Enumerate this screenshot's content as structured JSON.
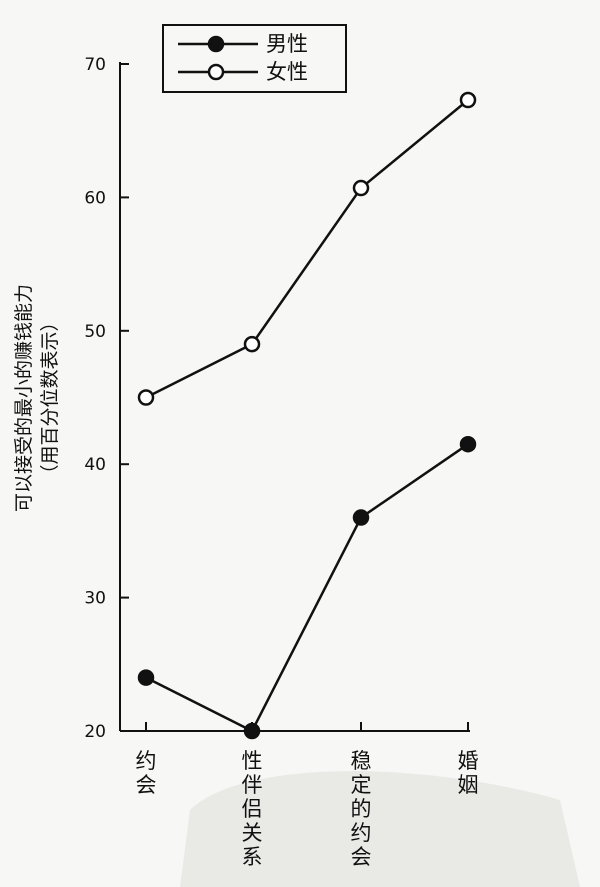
{
  "chart_data": {
    "type": "line",
    "categories": [
      "约会",
      "性伴侣关系",
      "稳定的约会",
      "婚姻"
    ],
    "series": [
      {
        "name": "男性",
        "marker": "filled",
        "values": [
          24,
          20,
          36,
          41.5
        ]
      },
      {
        "name": "女性",
        "marker": "open",
        "values": [
          45,
          49,
          60.7,
          67.3
        ]
      }
    ],
    "ylabel_line1": "可以接受的最小的赚钱能力",
    "ylabel_line2": "（用百分位数表示）",
    "ylim": [
      20,
      70
    ],
    "yticks": [
      20,
      30,
      40,
      50,
      60,
      70
    ],
    "grid": false,
    "legend_position": "top-left",
    "colors": {
      "line": "#111111",
      "background": "#f7f7f5"
    }
  }
}
